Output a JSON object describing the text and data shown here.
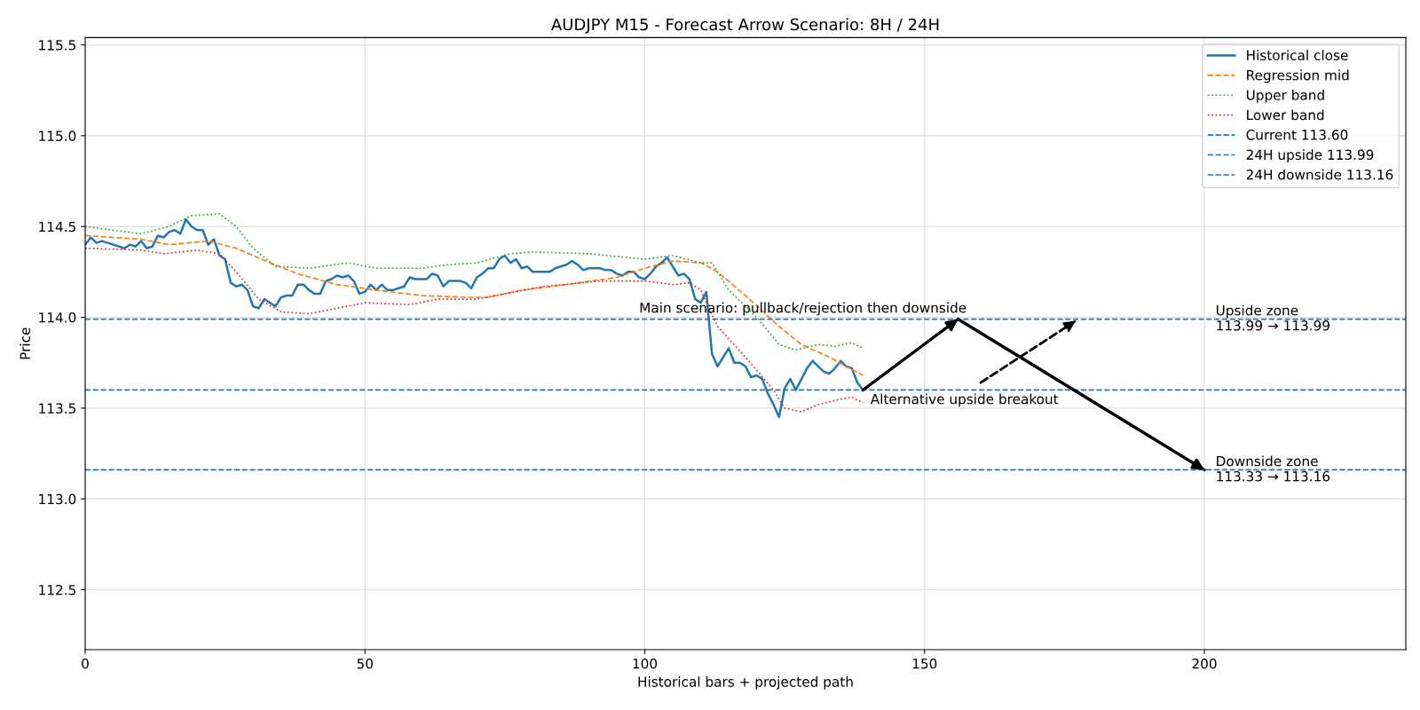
{
  "chart_data": {
    "type": "line",
    "title": "AUDJPY M15 - Forecast Arrow Scenario: 8H / 24H",
    "xlabel": "Historical bars + projected path",
    "ylabel": "Price",
    "xlim": [
      0,
      236
    ],
    "ylim": [
      112.17,
      115.54
    ],
    "xticks": [
      0,
      50,
      100,
      150,
      200
    ],
    "yticks": [
      112.5,
      {
        "value": 113,
        "label": "113.0"
      },
      113.5,
      {
        "value": 114,
        "label": "114.0"
      },
      114.5,
      {
        "value": 115,
        "label": "115.0"
      },
      115.5
    ],
    "grid": true,
    "legend": "top right",
    "marker": "none",
    "series": [
      {
        "name": "Historical close",
        "color": "#1f77b4",
        "line_style": "solid",
        "x": [
          0,
          1,
          2,
          3,
          5,
          7,
          8,
          9,
          10,
          11,
          12,
          13,
          14,
          15,
          16,
          17,
          18,
          19,
          20,
          21,
          22,
          23,
          24,
          25,
          26,
          27,
          28,
          29,
          30,
          31,
          32,
          33,
          34,
          35,
          36,
          37,
          38,
          39,
          40,
          41,
          42,
          43,
          44,
          45,
          46,
          47,
          48,
          49,
          50,
          51,
          52,
          53,
          54,
          55,
          56,
          57,
          58,
          59,
          60,
          61,
          62,
          63,
          64,
          65,
          66,
          67,
          68,
          69,
          70,
          71,
          72,
          73,
          74,
          75,
          76,
          77,
          78,
          79,
          80,
          81,
          82,
          83,
          84,
          85,
          86,
          87,
          88,
          89,
          90,
          91,
          92,
          93,
          94,
          95,
          96,
          97,
          98,
          99,
          100,
          101,
          102,
          103,
          104,
          105,
          106,
          107,
          108,
          109,
          110,
          111,
          112,
          113,
          114,
          115,
          116,
          117,
          118,
          119,
          120,
          121,
          122,
          123,
          124,
          125,
          126,
          127,
          128,
          129,
          130,
          131,
          132,
          133,
          134,
          135,
          136,
          137,
          138,
          139
        ],
        "values": [
          114.4,
          114.44,
          114.41,
          114.42,
          114.4,
          114.38,
          114.4,
          114.39,
          114.42,
          114.38,
          114.39,
          114.45,
          114.44,
          114.47,
          114.48,
          114.46,
          114.54,
          114.5,
          114.48,
          114.48,
          114.4,
          114.43,
          114.34,
          114.32,
          114.19,
          114.17,
          114.18,
          114.15,
          114.06,
          114.05,
          114.1,
          114.08,
          114.06,
          114.11,
          114.12,
          114.12,
          114.18,
          114.18,
          114.15,
          114.13,
          114.13,
          114.2,
          114.21,
          114.23,
          114.22,
          114.23,
          114.2,
          114.13,
          114.14,
          114.18,
          114.15,
          114.18,
          114.15,
          114.15,
          114.16,
          114.17,
          114.22,
          114.21,
          114.21,
          114.21,
          114.24,
          114.23,
          114.17,
          114.2,
          114.2,
          114.2,
          114.19,
          114.16,
          114.22,
          114.24,
          114.27,
          114.27,
          114.32,
          114.34,
          114.3,
          114.32,
          114.27,
          114.28,
          114.25,
          114.25,
          114.25,
          114.25,
          114.27,
          114.28,
          114.29,
          114.31,
          114.29,
          114.26,
          114.27,
          114.27,
          114.27,
          114.26,
          114.26,
          114.24,
          114.23,
          114.25,
          114.25,
          114.22,
          114.21,
          114.24,
          114.28,
          114.3,
          114.33,
          114.28,
          114.23,
          114.24,
          114.21,
          114.1,
          114.08,
          114.14,
          113.8,
          113.73,
          113.78,
          113.83,
          113.75,
          113.75,
          113.73,
          113.67,
          113.68,
          113.66,
          113.58,
          113.52,
          113.45,
          113.61,
          113.66,
          113.6,
          113.66,
          113.72,
          113.76,
          113.73,
          113.7,
          113.69,
          113.72,
          113.76,
          113.73,
          113.72,
          113.64,
          113.6
        ]
      },
      {
        "name": "Regression mid",
        "color": "#ff7f0e",
        "line_style": "dashed",
        "x": [
          0,
          10,
          15,
          22,
          27,
          33,
          38,
          45,
          52,
          60,
          68,
          72,
          78,
          86,
          95,
          100,
          105,
          110,
          113,
          118,
          124,
          128,
          133,
          139
        ],
        "values": [
          114.45,
          114.43,
          114.4,
          114.42,
          114.38,
          114.3,
          114.24,
          114.18,
          114.15,
          114.12,
          114.11,
          114.11,
          114.15,
          114.18,
          114.22,
          114.27,
          114.31,
          114.3,
          114.25,
          114.12,
          113.95,
          113.85,
          113.78,
          113.68
        ]
      },
      {
        "name": "Upper band",
        "color": "#2ca02c",
        "line_style": "dotted",
        "x": [
          0,
          5,
          10,
          15,
          19,
          24,
          27,
          30,
          34,
          40,
          47,
          52,
          60,
          65,
          70,
          76,
          80,
          90,
          100,
          105,
          110,
          112,
          115,
          120,
          124,
          127,
          131,
          134,
          137,
          139
        ],
        "values": [
          114.5,
          114.48,
          114.46,
          114.5,
          114.56,
          114.57,
          114.5,
          114.38,
          114.28,
          114.27,
          114.3,
          114.27,
          114.27,
          114.29,
          114.3,
          114.35,
          114.36,
          114.35,
          114.32,
          114.34,
          114.3,
          114.3,
          114.15,
          114.0,
          113.85,
          113.82,
          113.85,
          113.84,
          113.86,
          113.83
        ]
      },
      {
        "name": "Lower band",
        "color": "#d62728",
        "line_style": "dotted",
        "x": [
          0,
          10,
          14,
          20,
          24,
          27,
          31,
          35,
          40,
          45,
          50,
          58,
          63,
          70,
          75,
          82,
          92,
          100,
          105,
          108,
          110,
          113,
          118,
          123,
          125,
          128,
          131,
          135,
          137,
          139
        ],
        "values": [
          114.38,
          114.37,
          114.35,
          114.37,
          114.35,
          114.25,
          114.1,
          114.03,
          114.02,
          114.05,
          114.08,
          114.07,
          114.1,
          114.1,
          114.13,
          114.17,
          114.2,
          114.2,
          114.18,
          114.19,
          114.15,
          113.95,
          113.78,
          113.6,
          113.5,
          113.48,
          113.52,
          113.55,
          113.56,
          113.53
        ]
      },
      {
        "color": "#000000",
        "line_style": "solid",
        "x": [
          139,
          156,
          200
        ],
        "values": [
          113.6,
          113.99,
          113.16
        ]
      },
      {
        "color": "#000000",
        "line_style": "dashed",
        "x": [
          160,
          177
        ],
        "values": [
          113.64,
          113.98
        ]
      }
    ],
    "ref_lines": [
      {
        "axis": "y",
        "value": 113.6,
        "label": "Current 113.60",
        "color": "#1f77b4",
        "line_style": "dashed"
      },
      {
        "axis": "y",
        "value": 113.99,
        "label": "24H upside 113.99",
        "color": "#1f77b4",
        "line_style": "dashed"
      },
      {
        "axis": "y",
        "value": 113.16,
        "label": "24H downside 113.16",
        "color": "#1f77b4",
        "line_style": "dashed"
      }
    ],
    "annotations": [
      {
        "text": "Main scenario: pullback/rejection then downside",
        "x": 99,
        "y": 113.99
      },
      {
        "text": "Alternative upside breakout",
        "x": 139,
        "y": 113.6
      },
      {
        "text": "Upside zone\n113.99 → 113.99",
        "x": 202,
        "y": 113.99
      },
      {
        "text": "Downside zone\n113.33 → 113.16",
        "x": 202,
        "y": 113.16
      }
    ]
  }
}
